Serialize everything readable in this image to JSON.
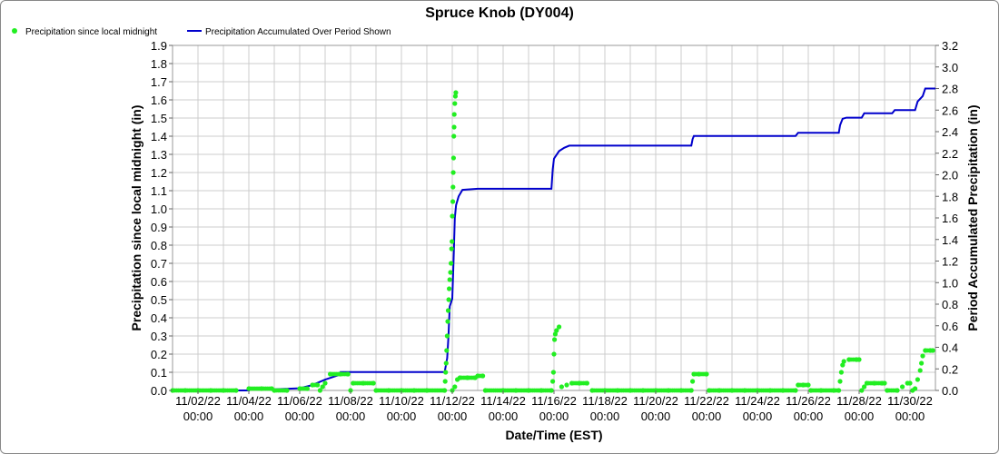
{
  "chart_data": {
    "type": "line",
    "title": "Spruce Knob (DY004)",
    "xlabel": "Date/Time (EST)",
    "ylabel_left": "Precipitation since local midnight (in)",
    "ylabel_right": "Period Accumulated Precipitation (in)",
    "x_range": [
      "11/01/22 00:00",
      "12/01/22 00:00"
    ],
    "x_ticks": [
      {
        "date": "11/02/22",
        "time": "00:00",
        "day": 1
      },
      {
        "date": "11/04/22",
        "time": "00:00",
        "day": 3
      },
      {
        "date": "11/06/22",
        "time": "00:00",
        "day": 5
      },
      {
        "date": "11/08/22",
        "time": "00:00",
        "day": 7
      },
      {
        "date": "11/10/22",
        "time": "00:00",
        "day": 9
      },
      {
        "date": "11/12/22",
        "time": "00:00",
        "day": 11
      },
      {
        "date": "11/14/22",
        "time": "00:00",
        "day": 13
      },
      {
        "date": "11/16/22",
        "time": "00:00",
        "day": 15
      },
      {
        "date": "11/18/22",
        "time": "00:00",
        "day": 17
      },
      {
        "date": "11/20/22",
        "time": "00:00",
        "day": 19
      },
      {
        "date": "11/22/22",
        "time": "00:00",
        "day": 21
      },
      {
        "date": "11/24/22",
        "time": "00:00",
        "day": 23
      },
      {
        "date": "11/26/22",
        "time": "00:00",
        "day": 25
      },
      {
        "date": "11/28/22",
        "time": "00:00",
        "day": 27
      },
      {
        "date": "11/30/22",
        "time": "00:00",
        "day": 29
      }
    ],
    "y_left_range": [
      0,
      1.9
    ],
    "y_left_ticks": [
      "0.0",
      "0.1",
      "0.2",
      "0.3",
      "0.4",
      "0.5",
      "0.6",
      "0.7",
      "0.8",
      "0.9",
      "1.0",
      "1.1",
      "1.2",
      "1.3",
      "1.4",
      "1.5",
      "1.6",
      "1.7",
      "1.8",
      "1.9"
    ],
    "y_right_range": [
      0,
      3.2
    ],
    "y_right_ticks": [
      "0.0",
      "0.2",
      "0.4",
      "0.6",
      "0.8",
      "1.0",
      "1.2",
      "1.4",
      "1.6",
      "1.8",
      "2.0",
      "2.2",
      "2.4",
      "2.6",
      "2.8",
      "3.0",
      "3.2"
    ],
    "grid": true,
    "legend_position": "top-left",
    "series": [
      {
        "name": "Precipitation since local midnight",
        "style": "points",
        "color": "#22ee22",
        "axis": "left",
        "points": [
          [
            0.0,
            0.0
          ],
          [
            0.5,
            0.0
          ],
          [
            1.0,
            0.0
          ],
          [
            1.5,
            0.0
          ],
          [
            2.0,
            0.0
          ],
          [
            2.5,
            0.0
          ],
          [
            3.0,
            0.01
          ],
          [
            3.5,
            0.01
          ],
          [
            3.9,
            0.01
          ],
          [
            4.0,
            0.0
          ],
          [
            4.5,
            0.0
          ],
          [
            5.0,
            0.01
          ],
          [
            5.3,
            0.01
          ],
          [
            5.5,
            0.03
          ],
          [
            5.7,
            0.03
          ],
          [
            5.8,
            0.0
          ],
          [
            5.9,
            0.02
          ],
          [
            6.0,
            0.04
          ],
          [
            6.2,
            0.09
          ],
          [
            6.6,
            0.09
          ],
          [
            6.9,
            0.09
          ],
          [
            7.0,
            0.0
          ],
          [
            7.1,
            0.04
          ],
          [
            7.5,
            0.04
          ],
          [
            7.9,
            0.04
          ],
          [
            8.0,
            0.0
          ],
          [
            8.5,
            0.0
          ],
          [
            9.0,
            0.0
          ],
          [
            9.5,
            0.0
          ],
          [
            10.0,
            0.0
          ],
          [
            10.7,
            0.0
          ],
          [
            10.72,
            0.05
          ],
          [
            10.74,
            0.1
          ],
          [
            10.76,
            0.15
          ],
          [
            10.78,
            0.22
          ],
          [
            10.8,
            0.3
          ],
          [
            10.82,
            0.38
          ],
          [
            10.84,
            0.44
          ],
          [
            10.86,
            0.5
          ],
          [
            10.88,
            0.56
          ],
          [
            10.9,
            0.61
          ],
          [
            10.93,
            0.65
          ],
          [
            10.95,
            0.7
          ],
          [
            10.97,
            0.78
          ],
          [
            10.99,
            0.82
          ],
          [
            11.0,
            0.96
          ],
          [
            11.02,
            1.04
          ],
          [
            11.03,
            1.12
          ],
          [
            11.04,
            1.2
          ],
          [
            11.05,
            1.28
          ],
          [
            11.06,
            1.4
          ],
          [
            11.07,
            1.45
          ],
          [
            11.08,
            1.52
          ],
          [
            11.1,
            1.58
          ],
          [
            11.12,
            1.62
          ],
          [
            11.14,
            1.64
          ],
          [
            11.0,
            0.0
          ],
          [
            11.1,
            0.02
          ],
          [
            11.2,
            0.06
          ],
          [
            11.3,
            0.07
          ],
          [
            11.6,
            0.07
          ],
          [
            11.9,
            0.07
          ],
          [
            12.0,
            0.08
          ],
          [
            12.2,
            0.08
          ],
          [
            12.3,
            0.0
          ],
          [
            13.0,
            0.0
          ],
          [
            13.5,
            0.0
          ],
          [
            14.0,
            0.0
          ],
          [
            14.5,
            0.0
          ],
          [
            14.9,
            0.0
          ],
          [
            14.95,
            0.05
          ],
          [
            14.98,
            0.1
          ],
          [
            15.0,
            0.2
          ],
          [
            15.02,
            0.28
          ],
          [
            15.05,
            0.31
          ],
          [
            15.1,
            0.33
          ],
          [
            15.2,
            0.35
          ],
          [
            15.3,
            0.02
          ],
          [
            15.5,
            0.03
          ],
          [
            15.7,
            0.04
          ],
          [
            16.0,
            0.04
          ],
          [
            16.3,
            0.04
          ],
          [
            16.5,
            0.0
          ],
          [
            17.0,
            0.0
          ],
          [
            17.5,
            0.0
          ],
          [
            18.0,
            0.0
          ],
          [
            18.5,
            0.0
          ],
          [
            19.0,
            0.0
          ],
          [
            19.5,
            0.0
          ],
          [
            20.0,
            0.0
          ],
          [
            20.4,
            0.0
          ],
          [
            20.45,
            0.05
          ],
          [
            20.5,
            0.09
          ],
          [
            20.7,
            0.09
          ],
          [
            21.0,
            0.09
          ],
          [
            21.1,
            0.0
          ],
          [
            21.5,
            0.0
          ],
          [
            22.0,
            0.0
          ],
          [
            22.5,
            0.0
          ],
          [
            23.0,
            0.0
          ],
          [
            23.5,
            0.0
          ],
          [
            24.0,
            0.0
          ],
          [
            24.5,
            0.0
          ],
          [
            24.6,
            0.03
          ],
          [
            24.8,
            0.03
          ],
          [
            25.0,
            0.03
          ],
          [
            25.1,
            0.0
          ],
          [
            25.5,
            0.0
          ],
          [
            26.0,
            0.0
          ],
          [
            26.2,
            0.0
          ],
          [
            26.25,
            0.05
          ],
          [
            26.3,
            0.1
          ],
          [
            26.35,
            0.14
          ],
          [
            26.4,
            0.16
          ],
          [
            26.6,
            0.17
          ],
          [
            26.9,
            0.17
          ],
          [
            27.0,
            0.17
          ],
          [
            27.1,
            0.0
          ],
          [
            27.2,
            0.02
          ],
          [
            27.3,
            0.04
          ],
          [
            27.6,
            0.04
          ],
          [
            27.9,
            0.04
          ],
          [
            28.0,
            0.04
          ],
          [
            28.1,
            0.0
          ],
          [
            28.5,
            0.0
          ],
          [
            28.7,
            0.02
          ],
          [
            28.9,
            0.04
          ],
          [
            29.0,
            0.04
          ],
          [
            29.1,
            0.0
          ],
          [
            29.2,
            0.01
          ],
          [
            29.3,
            0.06
          ],
          [
            29.4,
            0.11
          ],
          [
            29.45,
            0.15
          ],
          [
            29.5,
            0.19
          ],
          [
            29.6,
            0.22
          ],
          [
            29.8,
            0.22
          ],
          [
            29.9,
            0.22
          ]
        ]
      },
      {
        "name": "Precipitation Accumulated Over Period Shown",
        "style": "line",
        "color": "#0000cc",
        "axis": "right",
        "points": [
          [
            0.0,
            0.0
          ],
          [
            3.0,
            0.0
          ],
          [
            3.0,
            0.01
          ],
          [
            4.0,
            0.01
          ],
          [
            5.0,
            0.02
          ],
          [
            5.5,
            0.05
          ],
          [
            6.0,
            0.1
          ],
          [
            6.5,
            0.14
          ],
          [
            6.6,
            0.17
          ],
          [
            10.7,
            0.17
          ],
          [
            10.8,
            0.3
          ],
          [
            10.85,
            0.5
          ],
          [
            10.9,
            0.78
          ],
          [
            11.0,
            0.85
          ],
          [
            11.05,
            1.2
          ],
          [
            11.1,
            1.6
          ],
          [
            11.15,
            1.72
          ],
          [
            11.25,
            1.8
          ],
          [
            11.4,
            1.86
          ],
          [
            12.0,
            1.87
          ],
          [
            14.9,
            1.87
          ],
          [
            14.95,
            2.05
          ],
          [
            15.0,
            2.15
          ],
          [
            15.2,
            2.22
          ],
          [
            15.4,
            2.25
          ],
          [
            15.6,
            2.27
          ],
          [
            20.4,
            2.27
          ],
          [
            20.45,
            2.33
          ],
          [
            20.5,
            2.36
          ],
          [
            24.5,
            2.36
          ],
          [
            24.6,
            2.39
          ],
          [
            26.2,
            2.39
          ],
          [
            26.25,
            2.46
          ],
          [
            26.35,
            2.52
          ],
          [
            26.5,
            2.53
          ],
          [
            27.1,
            2.53
          ],
          [
            27.2,
            2.57
          ],
          [
            28.3,
            2.57
          ],
          [
            28.4,
            2.6
          ],
          [
            29.2,
            2.6
          ],
          [
            29.3,
            2.68
          ],
          [
            29.5,
            2.73
          ],
          [
            29.6,
            2.8
          ],
          [
            30.0,
            2.8
          ]
        ]
      }
    ]
  }
}
